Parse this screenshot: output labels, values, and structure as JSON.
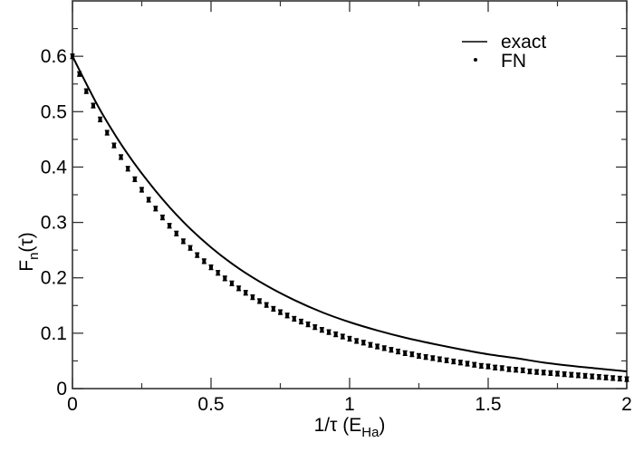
{
  "chart_data": {
    "type": "line",
    "title": "",
    "xlabel": "1/τ (E",
    "xlabel_sub": "Ha",
    "xlabel_close": ")",
    "ylabel": "F",
    "ylabel_sub": "n",
    "ylabel_tail": "(τ)",
    "xlim": [
      0,
      2
    ],
    "ylim": [
      0,
      0.7
    ],
    "x_ticks": [
      0,
      0.5,
      1,
      1.5,
      2
    ],
    "x_tick_labels": [
      "0",
      "0.5",
      "1",
      "1.5",
      "2"
    ],
    "x_minor_ticks": [
      0.25,
      0.75,
      1.25,
      1.75
    ],
    "y_ticks": [
      0,
      0.1,
      0.2,
      0.3,
      0.4,
      0.5,
      0.6
    ],
    "y_tick_labels": [
      "0",
      "0.1",
      "0.2",
      "0.3",
      "0.4",
      "0.5",
      "0.6"
    ],
    "y_minor_ticks": [
      0.05,
      0.15,
      0.25,
      0.35,
      0.45,
      0.55,
      0.65
    ],
    "grid": false,
    "legend_position": "upper right",
    "series": [
      {
        "name": "exact",
        "style": "line",
        "color": "#000000",
        "x": [
          0,
          0.1,
          0.2,
          0.3,
          0.4,
          0.5,
          0.6,
          0.7,
          0.8,
          0.9,
          1.0,
          1.1,
          1.2,
          1.3,
          1.4,
          1.5,
          1.6,
          1.7,
          1.8,
          1.9,
          2.0
        ],
        "values": [
          0.6,
          0.503,
          0.423,
          0.357,
          0.301,
          0.255,
          0.217,
          0.186,
          0.16,
          0.138,
          0.12,
          0.105,
          0.092,
          0.081,
          0.071,
          0.062,
          0.055,
          0.047,
          0.041,
          0.036,
          0.031
        ]
      },
      {
        "name": "FN",
        "style": "points-with-errorbars",
        "color": "#000000",
        "x": [
          0,
          0.025,
          0.05,
          0.075,
          0.1,
          0.125,
          0.15,
          0.175,
          0.2,
          0.225,
          0.25,
          0.275,
          0.3,
          0.325,
          0.35,
          0.375,
          0.4,
          0.425,
          0.45,
          0.475,
          0.5,
          0.525,
          0.55,
          0.575,
          0.6,
          0.625,
          0.65,
          0.675,
          0.7,
          0.725,
          0.75,
          0.775,
          0.8,
          0.825,
          0.85,
          0.875,
          0.9,
          0.925,
          0.95,
          0.975,
          1.0,
          1.025,
          1.05,
          1.075,
          1.1,
          1.125,
          1.15,
          1.175,
          1.2,
          1.225,
          1.25,
          1.275,
          1.3,
          1.325,
          1.35,
          1.375,
          1.4,
          1.425,
          1.45,
          1.475,
          1.5,
          1.525,
          1.55,
          1.575,
          1.6,
          1.625,
          1.65,
          1.675,
          1.7,
          1.725,
          1.75,
          1.775,
          1.8,
          1.825,
          1.85,
          1.875,
          1.9,
          1.925,
          1.95,
          1.975,
          2.0
        ],
        "values": [
          0.6,
          0.568,
          0.537,
          0.511,
          0.486,
          0.462,
          0.439,
          0.418,
          0.397,
          0.378,
          0.359,
          0.341,
          0.325,
          0.309,
          0.294,
          0.28,
          0.266,
          0.254,
          0.241,
          0.23,
          0.219,
          0.209,
          0.199,
          0.19,
          0.181,
          0.173,
          0.165,
          0.158,
          0.151,
          0.144,
          0.138,
          0.132,
          0.126,
          0.121,
          0.116,
          0.111,
          0.106,
          0.102,
          0.098,
          0.094,
          0.09,
          0.086,
          0.083,
          0.079,
          0.076,
          0.073,
          0.07,
          0.067,
          0.064,
          0.062,
          0.059,
          0.057,
          0.055,
          0.053,
          0.051,
          0.049,
          0.047,
          0.045,
          0.043,
          0.041,
          0.04,
          0.038,
          0.037,
          0.035,
          0.034,
          0.033,
          0.031,
          0.03,
          0.029,
          0.028,
          0.027,
          0.026,
          0.025,
          0.024,
          0.023,
          0.022,
          0.021,
          0.02,
          0.019,
          0.018,
          0.017
        ],
        "error": 0.004
      }
    ],
    "legend": [
      {
        "label": "exact",
        "marker": "line"
      },
      {
        "label": "FN",
        "marker": "dot"
      }
    ]
  }
}
